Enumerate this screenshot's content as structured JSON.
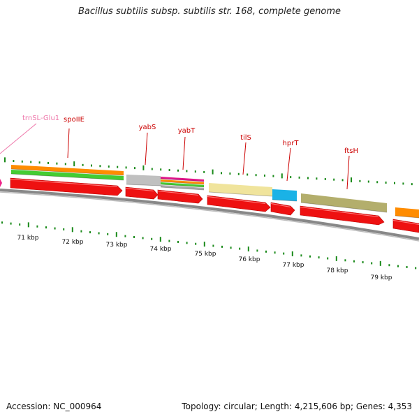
{
  "header": {
    "title": "Bacillus subtilis subsp. subtilis str. 168, complete genome"
  },
  "footer": {
    "accession": "Accession: NC_000964",
    "summary": "Topology: circular; Length: 4,215,606 bp; Genes: 4,353"
  },
  "colors": {
    "tick": "#1a8a1a",
    "backbone": "#888888",
    "gene_label": "#cc0000",
    "rna_label": "#ee77aa",
    "cds_arrow": "#ee1111"
  },
  "scale": {
    "unit": "kbp",
    "labels": [
      "71 kbp",
      "72 kbp",
      "73 kbp",
      "74 kbp",
      "75 kbp",
      "76 kbp",
      "77 kbp",
      "78 kbp",
      "79 kbp"
    ]
  },
  "gene_labels": [
    {
      "text": "trnSL-Glu1",
      "kind": "rna"
    },
    {
      "text": "spoIIE",
      "kind": "gene"
    },
    {
      "text": "yabS",
      "kind": "gene"
    },
    {
      "text": "yabT",
      "kind": "gene"
    },
    {
      "text": "tilS",
      "kind": "gene"
    },
    {
      "text": "hprT",
      "kind": "gene"
    },
    {
      "text": "ftsH",
      "kind": "gene"
    }
  ]
}
